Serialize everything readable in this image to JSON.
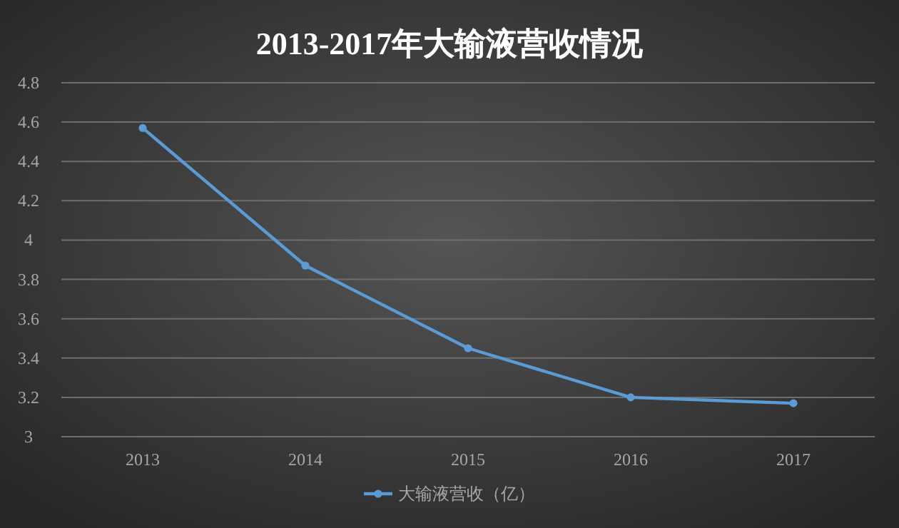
{
  "chart_data": {
    "type": "line",
    "title": "2013-2017年大输液营收情况",
    "categories": [
      "2013",
      "2014",
      "2015",
      "2016",
      "2017"
    ],
    "series": [
      {
        "name": "大输液营收（亿）",
        "color": "#5b9bd5",
        "values": [
          4.57,
          3.87,
          3.45,
          3.2,
          3.17
        ]
      }
    ],
    "ylim": [
      3,
      4.8
    ],
    "yticks": [
      {
        "value": 3,
        "label": "3"
      },
      {
        "value": 3.2,
        "label": "3.2"
      },
      {
        "value": 3.4,
        "label": "3.4"
      },
      {
        "value": 3.6,
        "label": "3.6"
      },
      {
        "value": 3.8,
        "label": "3.8"
      },
      {
        "value": 4,
        "label": "4"
      },
      {
        "value": 4.2,
        "label": "4.2"
      },
      {
        "value": 4.4,
        "label": "4.4"
      },
      {
        "value": 4.6,
        "label": "4.6"
      },
      {
        "value": 4.8,
        "label": "4.8"
      }
    ],
    "grid": "y",
    "legend": "bottom",
    "marker": "circle"
  }
}
